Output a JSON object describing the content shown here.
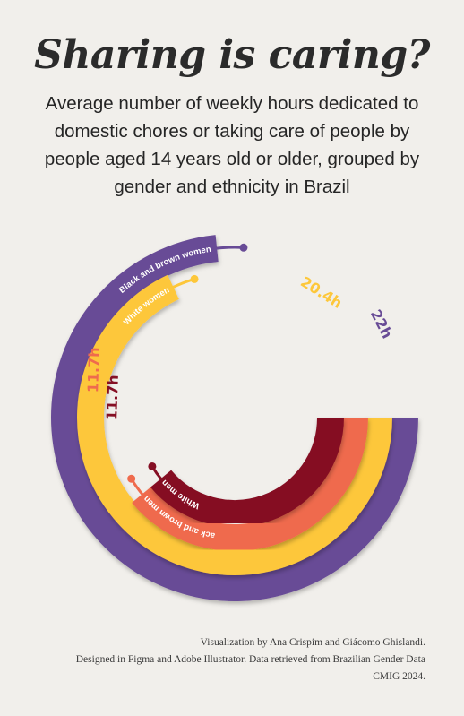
{
  "title": "Sharing is caring?",
  "subtitle": "Average number of weekly hours dedicated to domestic chores or taking care of people by people aged 14 years old or older, grouped by gender and ethnicity in Brazil",
  "credits": {
    "line1": "Visualization by Ana Crispim and Giácomo Ghislandi.",
    "line2": "Designed in Figma and Adobe Illustrator. Data retrieved from Brazilian Gender Data",
    "line3": "CMIG 2024."
  },
  "chart_data": {
    "type": "radial-bar",
    "unit": "h",
    "max": 24,
    "series": [
      {
        "name": "Black and brown women",
        "value": 22,
        "label": "22h",
        "color": "#684b96"
      },
      {
        "name": "White women",
        "value": 20.4,
        "label": "20.4h",
        "color": "#fdc73a"
      },
      {
        "name": "Black and brown men",
        "value": 11.7,
        "label": "11.7h",
        "color": "#ef6b4d"
      },
      {
        "name": "White men",
        "value": 11.7,
        "label": "11.7h",
        "color": "#850f24"
      }
    ]
  }
}
